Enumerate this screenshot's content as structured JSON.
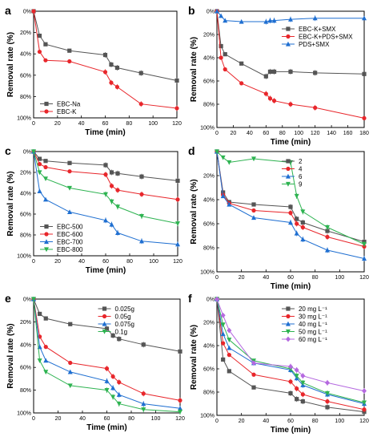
{
  "chart_data": [
    {
      "panel": "a",
      "type": "line",
      "xlabel": "Time (min)",
      "ylabel": "Removal rate (%)",
      "xlim": [
        0,
        120
      ],
      "xticks": [
        0,
        20,
        40,
        60,
        80,
        100,
        120
      ],
      "ylim": [
        0,
        100
      ],
      "yinverted": true,
      "yticks": [
        0,
        20,
        40,
        60,
        80,
        100
      ],
      "ytick_format": "pct",
      "legend_position": "bottom-left",
      "series": [
        {
          "name": "EBC-Na",
          "color": "#555555",
          "marker": "square",
          "x": [
            0,
            5,
            10,
            30,
            60,
            65,
            70,
            90,
            120
          ],
          "y": [
            0,
            23,
            31,
            37,
            41,
            50,
            53,
            58,
            65
          ]
        },
        {
          "name": "EBC-K",
          "color": "#e8262b",
          "marker": "circle",
          "x": [
            0,
            5,
            10,
            30,
            60,
            65,
            70,
            90,
            120
          ],
          "y": [
            0,
            38,
            46,
            47,
            57,
            67,
            71,
            87,
            91
          ]
        }
      ]
    },
    {
      "panel": "b",
      "type": "line",
      "xlabel": "Time (min)",
      "ylabel": "Removal rate (%)",
      "xlim": [
        0,
        180
      ],
      "xticks": [
        0,
        20,
        40,
        60,
        80,
        100,
        120,
        140,
        160,
        180
      ],
      "ylim": [
        0,
        100
      ],
      "yinverted": true,
      "yticks": [
        0,
        20,
        40,
        60,
        80,
        100
      ],
      "ytick_format": "pct",
      "legend_position": "upper-right",
      "series": [
        {
          "name": "EBC-K+SMX",
          "color": "#555555",
          "marker": "square",
          "x": [
            0,
            5,
            10,
            30,
            60,
            65,
            70,
            90,
            120,
            180
          ],
          "y": [
            0,
            30,
            37,
            45,
            56,
            52,
            52,
            52,
            53,
            54
          ]
        },
        {
          "name": "EBC-K+PDS+SMX",
          "color": "#e8262b",
          "marker": "circle",
          "x": [
            0,
            5,
            10,
            30,
            60,
            65,
            70,
            90,
            120,
            180
          ],
          "y": [
            0,
            40,
            50,
            62,
            71,
            75,
            77,
            80,
            83,
            92
          ]
        },
        {
          "name": "PDS+SMX",
          "color": "#1f6fd1",
          "marker": "triangle",
          "x": [
            0,
            5,
            10,
            30,
            60,
            65,
            70,
            90,
            120,
            180
          ],
          "y": [
            0,
            4,
            8,
            9,
            9,
            8,
            8,
            7,
            6,
            6
          ]
        }
      ]
    },
    {
      "panel": "c",
      "type": "line",
      "xlabel": "Time (min)",
      "ylabel": "Removal rate (%)",
      "xlim": [
        0,
        120
      ],
      "xticks": [
        0,
        20,
        40,
        60,
        80,
        100,
        120
      ],
      "ylim": [
        0,
        100
      ],
      "yinverted": true,
      "yticks": [
        0,
        20,
        40,
        60,
        80,
        100
      ],
      "ytick_format": "pct",
      "legend_position": "bottom-left",
      "series": [
        {
          "name": "EBC-500",
          "color": "#555555",
          "marker": "square",
          "x": [
            0,
            5,
            10,
            30,
            60,
            65,
            70,
            90,
            120
          ],
          "y": [
            0,
            7,
            9,
            11,
            13,
            20,
            21,
            24,
            28
          ]
        },
        {
          "name": "EBC-600",
          "color": "#e8262b",
          "marker": "circle",
          "x": [
            0,
            5,
            10,
            30,
            60,
            65,
            70,
            90,
            120
          ],
          "y": [
            0,
            12,
            15,
            19,
            22,
            33,
            37,
            41,
            46
          ]
        },
        {
          "name": "EBC-700",
          "color": "#1f6fd1",
          "marker": "triangle",
          "x": [
            0,
            5,
            10,
            30,
            60,
            65,
            70,
            90,
            120
          ],
          "y": [
            0,
            38,
            46,
            58,
            66,
            70,
            78,
            86,
            89
          ]
        },
        {
          "name": "EBC-800",
          "color": "#2eb351",
          "marker": "triangle-down",
          "x": [
            0,
            5,
            10,
            30,
            60,
            65,
            70,
            90,
            120
          ],
          "y": [
            0,
            20,
            26,
            35,
            41,
            48,
            53,
            62,
            69
          ]
        }
      ]
    },
    {
      "panel": "d",
      "type": "line",
      "xlabel": "Time (min)",
      "ylabel": "Removal rate (%)",
      "xlim": [
        0,
        120
      ],
      "xticks": [
        0,
        20,
        40,
        60,
        80,
        100,
        120
      ],
      "ylim": [
        0,
        100
      ],
      "yinverted": true,
      "yticks": [
        20,
        40,
        60,
        80,
        100
      ],
      "ytick_format": "pct",
      "legend_position": "upper-right",
      "series": [
        {
          "name": "2",
          "color": "#555555",
          "marker": "square",
          "x": [
            0,
            5,
            10,
            30,
            60,
            65,
            70,
            90,
            120
          ],
          "y": [
            0,
            34,
            42,
            44,
            46,
            56,
            59,
            66,
            75
          ]
        },
        {
          "name": "4",
          "color": "#e8262b",
          "marker": "circle",
          "x": [
            0,
            5,
            10,
            30,
            60,
            65,
            70,
            90,
            120
          ],
          "y": [
            0,
            36,
            43,
            49,
            51,
            60,
            63,
            71,
            79
          ]
        },
        {
          "name": "6",
          "color": "#1f6fd1",
          "marker": "triangle",
          "x": [
            0,
            5,
            10,
            30,
            60,
            65,
            70,
            90,
            120
          ],
          "y": [
            0,
            37,
            44,
            55,
            59,
            68,
            73,
            82,
            89
          ]
        },
        {
          "name": "9",
          "color": "#2eb351",
          "marker": "triangle-down",
          "x": [
            0,
            5,
            10,
            30,
            60,
            65,
            70,
            90,
            120
          ],
          "y": [
            0,
            5,
            9,
            6,
            9,
            37,
            50,
            63,
            77
          ]
        }
      ]
    },
    {
      "panel": "e",
      "type": "line",
      "xlabel": "Time (min)",
      "ylabel": "Removal rate (%)",
      "xlim": [
        0,
        120
      ],
      "xticks": [
        0,
        20,
        40,
        60,
        80,
        100,
        120
      ],
      "ylim": [
        0,
        100
      ],
      "yinverted": true,
      "yticks": [
        0,
        20,
        40,
        60,
        80,
        100
      ],
      "ytick_format": "pct",
      "legend_position": "upper-right",
      "series": [
        {
          "name": "0.025g",
          "color": "#555555",
          "marker": "square",
          "x": [
            0,
            5,
            10,
            30,
            60,
            65,
            70,
            90,
            120
          ],
          "y": [
            0,
            13,
            17,
            22,
            26,
            32,
            35,
            40,
            46
          ]
        },
        {
          "name": "0.05g",
          "color": "#e8262b",
          "marker": "circle",
          "x": [
            0,
            5,
            10,
            30,
            60,
            65,
            70,
            90,
            120
          ],
          "y": [
            0,
            33,
            42,
            56,
            61,
            68,
            73,
            83,
            89
          ]
        },
        {
          "name": "0.075g",
          "color": "#1f6fd1",
          "marker": "triangle",
          "x": [
            0,
            5,
            10,
            30,
            60,
            65,
            70,
            90,
            120
          ],
          "y": [
            0,
            42,
            54,
            64,
            72,
            78,
            84,
            92,
            96
          ]
        },
        {
          "name": "0.1g",
          "color": "#2eb351",
          "marker": "triangle-down",
          "x": [
            0,
            5,
            10,
            30,
            60,
            65,
            70,
            90,
            120
          ],
          "y": [
            0,
            54,
            64,
            76,
            80,
            86,
            92,
            97,
            99
          ]
        }
      ]
    },
    {
      "panel": "f",
      "type": "line",
      "xlabel": "Time (min)",
      "ylabel": "Removal rate (%)",
      "xlim": [
        0,
        120
      ],
      "xticks": [
        0,
        20,
        40,
        60,
        80,
        100,
        120
      ],
      "ylim": [
        0,
        100
      ],
      "yinverted": true,
      "yticks": [
        0,
        20,
        40,
        60,
        80,
        100
      ],
      "ytick_format": "pct",
      "legend_position": "upper-right",
      "series": [
        {
          "name": "20 mg L⁻¹",
          "color": "#555555",
          "marker": "square",
          "x": [
            0,
            5,
            10,
            30,
            60,
            65,
            70,
            90,
            120
          ],
          "y": [
            0,
            52,
            62,
            76,
            81,
            86,
            88,
            93,
            97
          ]
        },
        {
          "name": "30 mg L⁻¹",
          "color": "#e8262b",
          "marker": "circle",
          "x": [
            0,
            5,
            10,
            30,
            60,
            65,
            70,
            90,
            120
          ],
          "y": [
            0,
            38,
            48,
            65,
            71,
            77,
            82,
            88,
            95
          ]
        },
        {
          "name": "40 mg L⁻¹",
          "color": "#1f6fd1",
          "marker": "triangle",
          "x": [
            0,
            5,
            10,
            30,
            60,
            65,
            70,
            90,
            120
          ],
          "y": [
            0,
            30,
            42,
            55,
            61,
            68,
            74,
            82,
            90
          ]
        },
        {
          "name": "50 mg L⁻¹",
          "color": "#2eb351",
          "marker": "triangle-down",
          "x": [
            0,
            5,
            10,
            30,
            60,
            65,
            70,
            90,
            120
          ],
          "y": [
            0,
            22,
            35,
            53,
            60,
            66,
            72,
            81,
            89
          ]
        },
        {
          "name": "60 mg L⁻¹",
          "color": "#b569e0",
          "marker": "diamond",
          "x": [
            0,
            5,
            10,
            30,
            60,
            65,
            70,
            90,
            120
          ],
          "y": [
            0,
            14,
            27,
            55,
            58,
            61,
            66,
            72,
            79
          ]
        }
      ]
    }
  ]
}
